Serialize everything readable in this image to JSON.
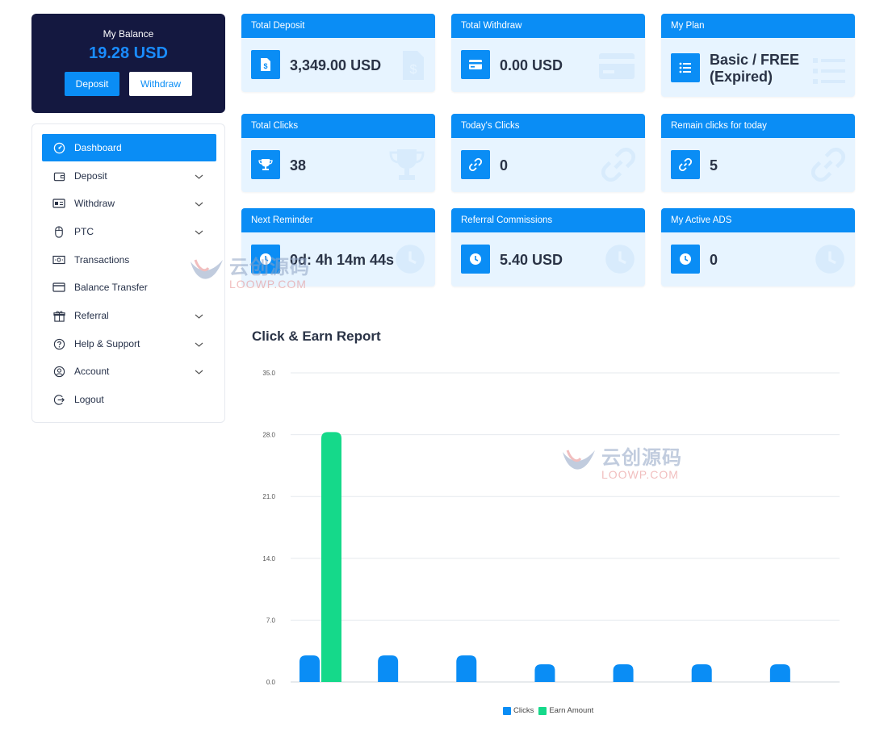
{
  "balance": {
    "label": "My Balance",
    "amount": "19.28 USD",
    "deposit_label": "Deposit",
    "withdraw_label": "Withdraw"
  },
  "sidebar": {
    "items": [
      {
        "label": "Dashboard",
        "icon": "gauge-icon",
        "active": true,
        "has_chevron": false
      },
      {
        "label": "Deposit",
        "icon": "wallet-icon",
        "has_chevron": true
      },
      {
        "label": "Withdraw",
        "icon": "id-card-icon",
        "has_chevron": true
      },
      {
        "label": "PTC",
        "icon": "mouse-icon",
        "has_chevron": true
      },
      {
        "label": "Transactions",
        "icon": "money-icon",
        "has_chevron": false
      },
      {
        "label": "Balance Transfer",
        "icon": "credit-card-icon",
        "has_chevron": false
      },
      {
        "label": "Referral",
        "icon": "gift-icon",
        "has_chevron": true
      },
      {
        "label": "Help & Support",
        "icon": "question-icon",
        "has_chevron": true
      },
      {
        "label": "Account",
        "icon": "user-circle-icon",
        "has_chevron": true
      },
      {
        "label": "Logout",
        "icon": "logout-icon",
        "has_chevron": false
      }
    ]
  },
  "stats": [
    {
      "title": "Total Deposit",
      "value": "3,349.00 USD",
      "icon": "invoice-dollar-icon"
    },
    {
      "title": "Total Withdraw",
      "value": "0.00 USD",
      "icon": "credit-card-icon"
    },
    {
      "title": "My Plan",
      "value": "Basic / FREE (Expired)",
      "icon": "list-icon"
    },
    {
      "title": "Total Clicks",
      "value": "38",
      "icon": "trophy-icon"
    },
    {
      "title": "Today's Clicks",
      "value": "0",
      "icon": "link-icon"
    },
    {
      "title": "Remain clicks for today",
      "value": "5",
      "icon": "link-icon"
    },
    {
      "title": "Next Reminder",
      "value": "0d: 4h 14m 44s",
      "icon": "clock-icon"
    },
    {
      "title": "Referral Commissions",
      "value": "5.40 USD",
      "icon": "clock-icon"
    },
    {
      "title": "My Active ADS",
      "value": "0",
      "icon": "clock-icon"
    }
  ],
  "report": {
    "title": "Click & Earn Report"
  },
  "watermark": {
    "cn": "云创源码",
    "en": "LOOWP.COM"
  },
  "colors": {
    "accent": "#0a8df5",
    "sidebar_dark": "#141840",
    "card_bg": "#e7f4ff",
    "earn": "#15d98a"
  },
  "chart_data": {
    "type": "bar",
    "categories": [
      "",
      "",
      "",
      "",
      "",
      "",
      ""
    ],
    "series": [
      {
        "name": "Clicks",
        "color": "#0a8df5",
        "values": [
          3,
          3,
          3,
          2,
          2,
          2,
          2
        ]
      },
      {
        "name": "Earn Amount",
        "color": "#15d98a",
        "values": [
          28.3,
          null,
          null,
          null,
          null,
          null,
          null
        ]
      }
    ],
    "yticks": [
      "0.0",
      "7.0",
      "14.0",
      "21.0",
      "28.0",
      "35.0"
    ],
    "ylim": [
      0,
      35
    ],
    "grid": true,
    "legend": "bottom"
  }
}
